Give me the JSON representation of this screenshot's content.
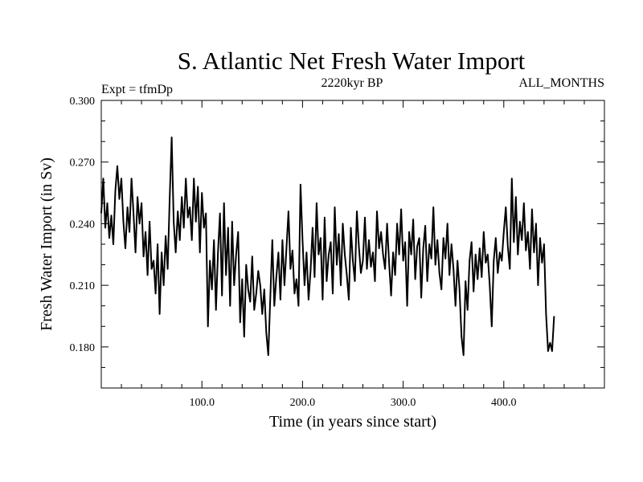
{
  "chart_data": {
    "type": "line",
    "title": "S. Atlantic Net Fresh Water Import",
    "subtitle_left": "Expt = tfmDp",
    "subtitle_center": "2220kyr BP",
    "subtitle_right": "ALL_MONTHS",
    "xlabel": "Time (in years since start)",
    "ylabel": "Fresh Water Import (in Sv)",
    "xlim": [
      0,
      500
    ],
    "ylim": [
      0.16,
      0.3
    ],
    "x_ticks": [
      100,
      200,
      300,
      400
    ],
    "x_tick_labels": [
      "100.0",
      "200.0",
      "300.0",
      "400.0"
    ],
    "y_ticks": [
      0.18,
      0.21,
      0.24,
      0.27,
      0.3
    ],
    "y_tick_labels": [
      "0.180",
      "0.210",
      "0.240",
      "0.270",
      "0.300"
    ],
    "series": [
      {
        "name": "Fresh Water Import",
        "x_start": 0,
        "x_step": 2,
        "values": [
          0.245,
          0.262,
          0.238,
          0.25,
          0.233,
          0.244,
          0.23,
          0.256,
          0.268,
          0.252,
          0.262,
          0.241,
          0.228,
          0.248,
          0.236,
          0.262,
          0.245,
          0.226,
          0.253,
          0.24,
          0.25,
          0.224,
          0.236,
          0.215,
          0.241,
          0.218,
          0.222,
          0.206,
          0.23,
          0.196,
          0.226,
          0.21,
          0.234,
          0.218,
          0.252,
          0.282,
          0.241,
          0.226,
          0.246,
          0.232,
          0.253,
          0.238,
          0.262,
          0.243,
          0.248,
          0.232,
          0.262,
          0.241,
          0.258,
          0.226,
          0.255,
          0.238,
          0.245,
          0.19,
          0.222,
          0.208,
          0.232,
          0.198,
          0.226,
          0.245,
          0.205,
          0.25,
          0.215,
          0.238,
          0.2,
          0.241,
          0.21,
          0.225,
          0.236,
          0.192,
          0.213,
          0.185,
          0.22,
          0.208,
          0.202,
          0.224,
          0.198,
          0.206,
          0.217,
          0.21,
          0.196,
          0.208,
          0.187,
          0.176,
          0.204,
          0.232,
          0.2,
          0.214,
          0.226,
          0.203,
          0.232,
          0.21,
          0.228,
          0.246,
          0.218,
          0.227,
          0.206,
          0.213,
          0.2,
          0.259,
          0.232,
          0.21,
          0.226,
          0.203,
          0.217,
          0.238,
          0.214,
          0.25,
          0.225,
          0.233,
          0.203,
          0.243,
          0.212,
          0.225,
          0.231,
          0.206,
          0.248,
          0.22,
          0.235,
          0.21,
          0.24,
          0.225,
          0.215,
          0.203,
          0.238,
          0.222,
          0.212,
          0.246,
          0.229,
          0.216,
          0.222,
          0.243,
          0.218,
          0.232,
          0.219,
          0.226,
          0.212,
          0.246,
          0.228,
          0.236,
          0.225,
          0.218,
          0.24,
          0.221,
          0.205,
          0.226,
          0.215,
          0.24,
          0.225,
          0.247,
          0.222,
          0.231,
          0.2,
          0.236,
          0.225,
          0.242,
          0.213,
          0.229,
          0.233,
          0.204,
          0.228,
          0.239,
          0.212,
          0.23,
          0.223,
          0.248,
          0.22,
          0.232,
          0.216,
          0.208,
          0.233,
          0.223,
          0.24,
          0.215,
          0.23,
          0.218,
          0.2,
          0.222,
          0.208,
          0.185,
          0.176,
          0.212,
          0.198,
          0.222,
          0.231,
          0.207,
          0.225,
          0.213,
          0.228,
          0.214,
          0.236,
          0.221,
          0.225,
          0.21,
          0.19,
          0.222,
          0.233,
          0.216,
          0.226,
          0.222,
          0.236,
          0.248,
          0.229,
          0.218,
          0.262,
          0.231,
          0.253,
          0.225,
          0.241,
          0.232,
          0.25,
          0.227,
          0.236,
          0.218,
          0.247,
          0.226,
          0.24,
          0.21,
          0.233,
          0.221,
          0.23,
          0.196,
          0.178,
          0.182,
          0.178,
          0.195
        ]
      }
    ]
  }
}
